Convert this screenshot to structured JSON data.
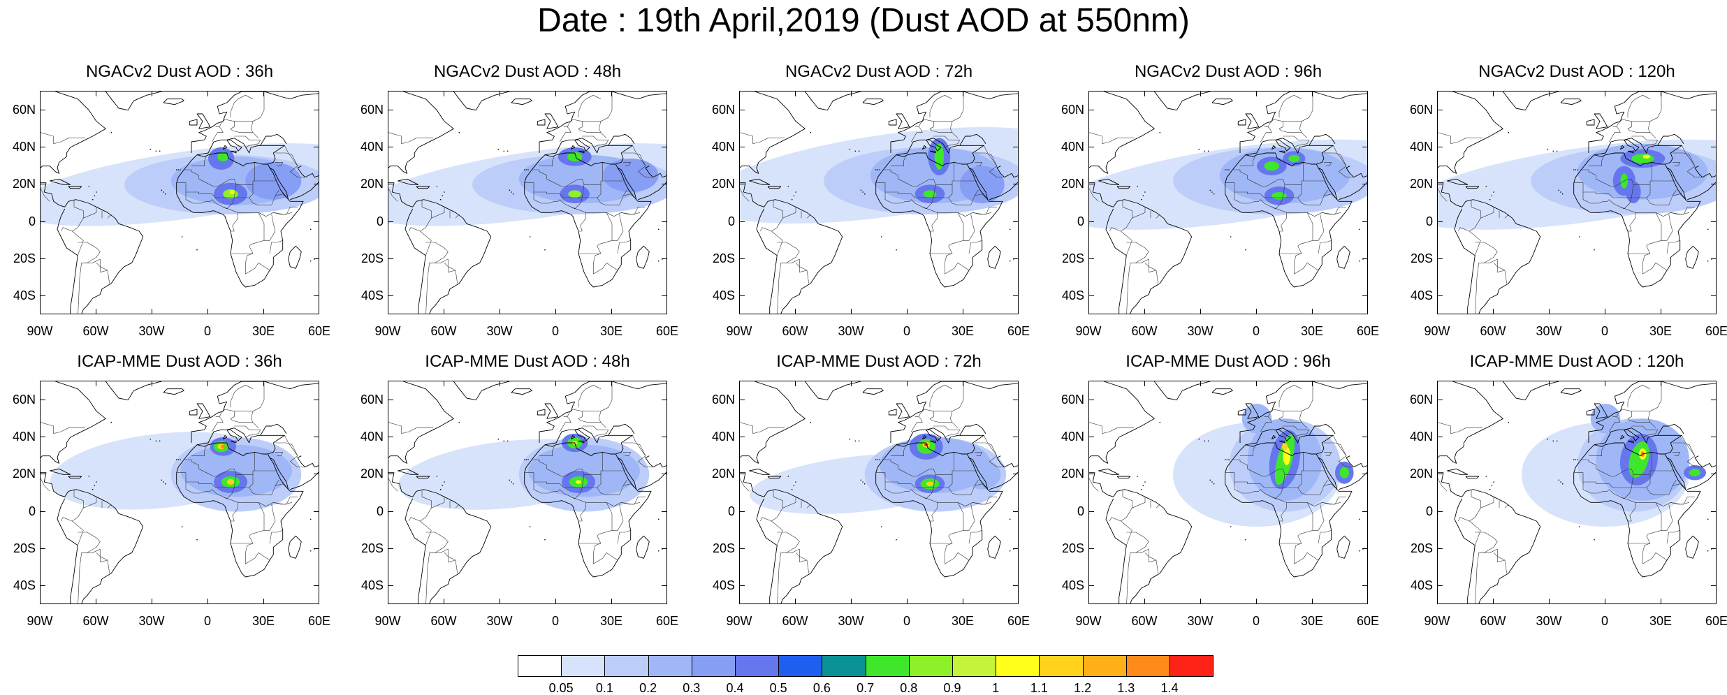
{
  "title": "Date : 19th April,2019 (Dust AOD at 550nm)",
  "lat_ticks": [
    "60N",
    "40N",
    "20N",
    "0",
    "20S",
    "40S"
  ],
  "lon_ticks": [
    "90W",
    "60W",
    "30W",
    "0",
    "30E",
    "60E"
  ],
  "map_extent": {
    "lon_min": -90,
    "lon_max": 60,
    "lat_min": -50,
    "lat_max": 70
  },
  "colorbar": {
    "labels": [
      "0.05",
      "0.1",
      "0.2",
      "0.3",
      "0.4",
      "0.5",
      "0.6",
      "0.7",
      "0.8",
      "0.9",
      "1",
      "1.1",
      "1.2",
      "1.3",
      "1.4"
    ],
    "colors": [
      "#ffffff",
      "#d7e3fb",
      "#bccdf9",
      "#9fb7f6",
      "#869ef4",
      "#6677ee",
      "#1f5ff0",
      "#0a9296",
      "#3fe62b",
      "#8ef028",
      "#c4f33c",
      "#ffff1a",
      "#ffd21e",
      "#ffb018",
      "#ff8a1a",
      "#ff2217"
    ]
  },
  "panels": [
    {
      "title": "NGACv2 Dust AOD : 36h",
      "model": "NGACv2",
      "lead": "36h"
    },
    {
      "title": "NGACv2 Dust AOD : 48h",
      "model": "NGACv2",
      "lead": "48h"
    },
    {
      "title": "NGACv2 Dust AOD : 72h",
      "model": "NGACv2",
      "lead": "72h"
    },
    {
      "title": "NGACv2 Dust AOD : 96h",
      "model": "NGACv2",
      "lead": "96h"
    },
    {
      "title": "NGACv2 Dust AOD : 120h",
      "model": "NGACv2",
      "lead": "120h"
    },
    {
      "title": "ICAP-MME Dust AOD : 36h",
      "model": "ICAP-MME",
      "lead": "36h"
    },
    {
      "title": "ICAP-MME Dust AOD : 48h",
      "model": "ICAP-MME",
      "lead": "48h"
    },
    {
      "title": "ICAP-MME Dust AOD : 72h",
      "model": "ICAP-MME",
      "lead": "72h"
    },
    {
      "title": "ICAP-MME Dust AOD : 96h",
      "model": "ICAP-MME",
      "lead": "96h"
    },
    {
      "title": "ICAP-MME Dust AOD : 120h",
      "model": "ICAP-MME",
      "lead": "120h"
    }
  ]
}
